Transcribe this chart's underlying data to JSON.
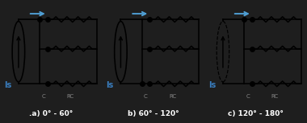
{
  "bg_color": "#1e1e1e",
  "panel_bg": "#ffffff",
  "wire_color": "#000000",
  "dot_color": "#000000",
  "arrow_color": "#4f9fd4",
  "label_color": "#ffffff",
  "Is_label_color": "#3a7fc1",
  "panels": [
    {
      "label": ".a) 0° - 60°",
      "source_dashed": false,
      "top_left_dot": true,
      "top_right_dot": true,
      "mid_left_dot": false,
      "mid_right_dot": true,
      "bot_left_dot": false,
      "bot_right_dot": true,
      "top_res_solid": true,
      "mid_res_solid": true,
      "bot_res_solid": true
    },
    {
      "label": "b) 60° - 120°",
      "source_dashed": false,
      "top_left_dot": false,
      "top_right_dot": true,
      "mid_left_dot": false,
      "mid_right_dot": true,
      "bot_left_dot": true,
      "bot_right_dot": true,
      "top_res_solid": true,
      "mid_res_solid": true,
      "bot_res_solid": true
    },
    {
      "label": "c) 120° - 180°",
      "source_dashed": true,
      "top_left_dot": true,
      "top_right_dot": true,
      "mid_left_dot": false,
      "mid_right_dot": true,
      "bot_left_dot": false,
      "bot_right_dot": true,
      "top_res_solid": true,
      "mid_res_solid": true,
      "bot_res_solid": true
    }
  ],
  "figsize": [
    3.8,
    1.53
  ],
  "dpi": 100
}
